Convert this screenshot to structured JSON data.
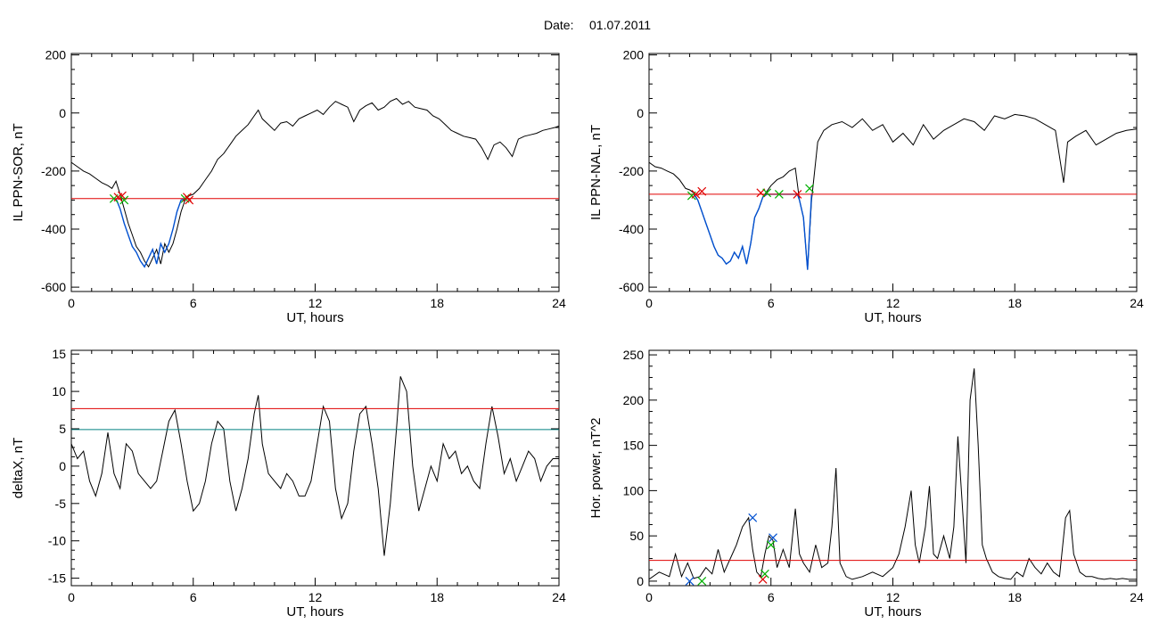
{
  "figure": {
    "title_label": "Date:",
    "title_date": "01.07.2011"
  },
  "chart_data": [
    {
      "type": "line",
      "ylabel": "IL PPN-SOR, nT",
      "xlabel": "UT, hours",
      "xlim": [
        0,
        24
      ],
      "ylim": [
        -615,
        205
      ],
      "xticks": [
        0,
        6,
        12,
        18,
        24
      ],
      "yticks": [
        200,
        0,
        -200,
        -400,
        -600
      ],
      "grid": false,
      "threshold_lines": [
        {
          "y": -295,
          "color": "#e00000"
        }
      ],
      "series": [
        {
          "color": "#000000",
          "x": [
            0,
            0.3,
            0.6,
            0.9,
            1.2,
            1.5,
            1.8,
            2.0,
            2.2,
            2.4,
            2.6,
            2.8,
            3.0,
            3.2,
            3.4,
            3.6,
            3.8,
            4.0,
            4.2,
            4.4,
            4.6,
            4.8,
            5.0,
            5.2,
            5.4,
            5.6,
            5.8,
            6.0,
            6.3,
            6.6,
            6.9,
            7.2,
            7.5,
            7.8,
            8.1,
            8.4,
            8.7,
            9.0,
            9.2,
            9.4,
            9.7,
            10.0,
            10.3,
            10.6,
            10.9,
            11.2,
            11.5,
            11.8,
            12.1,
            12.4,
            12.7,
            13.0,
            13.3,
            13.6,
            13.9,
            14.2,
            14.5,
            14.8,
            15.1,
            15.4,
            15.7,
            16.0,
            16.3,
            16.6,
            16.9,
            17.2,
            17.5,
            17.8,
            18.1,
            18.4,
            18.7,
            19.0,
            19.3,
            19.6,
            19.9,
            20.2,
            20.5,
            20.8,
            21.1,
            21.4,
            21.7,
            22.0,
            22.3,
            22.6,
            22.9,
            23.2,
            23.5,
            23.8,
            24.0
          ],
          "y": [
            -170,
            -185,
            -200,
            -210,
            -225,
            -240,
            -250,
            -260,
            -235,
            -280,
            -330,
            -380,
            -420,
            -460,
            -480,
            -510,
            -530,
            -500,
            -470,
            -520,
            -450,
            -480,
            -450,
            -400,
            -340,
            -300,
            -285,
            -280,
            -260,
            -230,
            -200,
            -160,
            -140,
            -110,
            -80,
            -60,
            -40,
            -10,
            10,
            -20,
            -40,
            -60,
            -35,
            -30,
            -45,
            -20,
            -10,
            0,
            10,
            -5,
            20,
            40,
            30,
            20,
            -30,
            10,
            25,
            35,
            10,
            20,
            40,
            50,
            30,
            40,
            20,
            15,
            10,
            -10,
            -20,
            -40,
            -60,
            -70,
            -80,
            -85,
            -90,
            -120,
            -160,
            -110,
            -100,
            -120,
            -150,
            -90,
            -80,
            -75,
            -70,
            -60,
            -55,
            -50,
            -45
          ]
        },
        {
          "color": "#0050d0",
          "x": [
            2.2,
            2.4,
            2.6,
            2.8,
            3.0,
            3.2,
            3.4,
            3.6,
            3.8,
            4.0,
            4.2,
            4.4,
            4.6,
            4.8,
            5.0,
            5.2,
            5.4,
            5.6,
            5.8
          ],
          "y": [
            -295,
            -330,
            -380,
            -420,
            -460,
            -480,
            -510,
            -530,
            -500,
            -470,
            -520,
            -450,
            -480,
            -450,
            -400,
            -340,
            -300,
            -295,
            -295
          ]
        }
      ],
      "markers": [
        {
          "x": 2.1,
          "y": -295,
          "color": "#00b000"
        },
        {
          "x": 2.3,
          "y": -290,
          "color": "#e00000"
        },
        {
          "x": 2.5,
          "y": -285,
          "color": "#e00000"
        },
        {
          "x": 2.6,
          "y": -300,
          "color": "#00b000"
        },
        {
          "x": 5.6,
          "y": -295,
          "color": "#00b000"
        },
        {
          "x": 5.7,
          "y": -290,
          "color": "#e00000"
        },
        {
          "x": 5.8,
          "y": -300,
          "color": "#e00000"
        }
      ]
    },
    {
      "type": "line",
      "ylabel": "IL PPN-NAL, nT",
      "xlabel": "UT, hours",
      "xlim": [
        0,
        24
      ],
      "ylim": [
        -615,
        205
      ],
      "xticks": [
        0,
        6,
        12,
        18,
        24
      ],
      "yticks": [
        200,
        0,
        -200,
        -400,
        -600
      ],
      "grid": false,
      "threshold_lines": [
        {
          "y": -280,
          "color": "#e00000"
        }
      ],
      "series": [
        {
          "color": "#000000",
          "x": [
            0,
            0.3,
            0.6,
            0.9,
            1.2,
            1.5,
            1.8,
            2.0,
            2.2,
            2.4,
            2.6,
            2.8,
            3.0,
            3.2,
            3.4,
            3.6,
            3.8,
            4.0,
            4.2,
            4.4,
            4.6,
            4.8,
            5.0,
            5.2,
            5.4,
            5.6,
            5.8,
            6.0,
            6.3,
            6.6,
            6.9,
            7.2,
            7.4,
            7.6,
            7.8,
            8.0,
            8.3,
            8.6,
            9.0,
            9.5,
            10.0,
            10.5,
            11.0,
            11.5,
            12.0,
            12.5,
            13.0,
            13.5,
            14.0,
            14.5,
            15.0,
            15.5,
            16.0,
            16.5,
            17.0,
            17.5,
            18.0,
            18.5,
            19.0,
            19.5,
            20.0,
            20.2,
            20.4,
            20.6,
            21.0,
            21.5,
            22.0,
            22.5,
            23.0,
            23.5,
            24.0
          ],
          "y": [
            -170,
            -185,
            -190,
            -200,
            -210,
            -230,
            -260,
            -265,
            -275,
            -300,
            -340,
            -380,
            -420,
            -460,
            -490,
            -500,
            -520,
            -510,
            -480,
            -500,
            -460,
            -520,
            -450,
            -360,
            -330,
            -290,
            -270,
            -250,
            -230,
            -220,
            -200,
            -190,
            -300,
            -360,
            -540,
            -300,
            -100,
            -60,
            -40,
            -30,
            -50,
            -20,
            -60,
            -40,
            -100,
            -70,
            -110,
            -40,
            -90,
            -60,
            -40,
            -20,
            -30,
            -60,
            -10,
            -20,
            -5,
            -10,
            -20,
            -40,
            -60,
            -150,
            -240,
            -100,
            -80,
            -60,
            -110,
            -90,
            -70,
            -60,
            -55
          ]
        },
        {
          "color": "#0050d0",
          "x": [
            2.2,
            2.4,
            2.6,
            2.8,
            3.0,
            3.2,
            3.4,
            3.6,
            3.8,
            4.0,
            4.2,
            4.4,
            4.6,
            4.8,
            5.0,
            5.2,
            5.4,
            5.6,
            5.8,
            6.0,
            7.3,
            7.4,
            7.6,
            7.8,
            8.0
          ],
          "y": [
            -280,
            -300,
            -340,
            -380,
            -420,
            -460,
            -490,
            -500,
            -520,
            -510,
            -480,
            -500,
            -460,
            -520,
            -450,
            -360,
            -330,
            -290,
            -280,
            -280,
            -280,
            -300,
            -360,
            -540,
            -280
          ]
        }
      ],
      "markers": [
        {
          "x": 2.1,
          "y": -285,
          "color": "#00b000"
        },
        {
          "x": 2.3,
          "y": -280,
          "color": "#e00000"
        },
        {
          "x": 2.6,
          "y": -270,
          "color": "#e00000"
        },
        {
          "x": 5.5,
          "y": -275,
          "color": "#e00000"
        },
        {
          "x": 5.8,
          "y": -275,
          "color": "#00b000"
        },
        {
          "x": 6.4,
          "y": -280,
          "color": "#00b000"
        },
        {
          "x": 7.3,
          "y": -280,
          "color": "#e00000"
        },
        {
          "x": 7.9,
          "y": -260,
          "color": "#00b000"
        }
      ]
    },
    {
      "type": "line",
      "ylabel": "deltaX, nT",
      "xlabel": "UT, hours",
      "xlim": [
        0,
        24
      ],
      "ylim": [
        -16,
        15.5
      ],
      "xticks": [
        0,
        6,
        12,
        18,
        24
      ],
      "yticks": [
        15,
        10,
        5,
        0,
        -5,
        -10,
        -15
      ],
      "grid": false,
      "threshold_lines": [
        {
          "y": 7.7,
          "color": "#e00000"
        },
        {
          "y": 4.9,
          "color": "#008080"
        }
      ],
      "series": [
        {
          "color": "#000000",
          "x": [
            0,
            0.3,
            0.6,
            0.9,
            1.2,
            1.5,
            1.8,
            2.1,
            2.4,
            2.7,
            3.0,
            3.3,
            3.6,
            3.9,
            4.2,
            4.5,
            4.8,
            5.1,
            5.4,
            5.7,
            6.0,
            6.3,
            6.6,
            6.9,
            7.2,
            7.5,
            7.8,
            8.1,
            8.4,
            8.7,
            9.0,
            9.2,
            9.4,
            9.7,
            10.0,
            10.3,
            10.6,
            10.9,
            11.2,
            11.5,
            11.8,
            12.1,
            12.4,
            12.7,
            13.0,
            13.3,
            13.6,
            13.9,
            14.2,
            14.5,
            14.8,
            15.1,
            15.4,
            15.7,
            16.0,
            16.2,
            16.5,
            16.8,
            17.1,
            17.4,
            17.7,
            18.0,
            18.3,
            18.6,
            18.9,
            19.2,
            19.5,
            19.8,
            20.1,
            20.4,
            20.7,
            21.0,
            21.3,
            21.6,
            21.9,
            22.2,
            22.5,
            22.8,
            23.1,
            23.4,
            23.7,
            24.0
          ],
          "y": [
            3,
            1,
            2,
            -2,
            -4,
            -1,
            4.5,
            -1,
            -3,
            3,
            2,
            -1,
            -2,
            -3,
            -2,
            2,
            6,
            7.5,
            3,
            -2,
            -6,
            -5,
            -2,
            3,
            6,
            5,
            -2,
            -6,
            -3,
            1,
            7,
            9.5,
            3,
            -1,
            -2,
            -3,
            -1,
            -2,
            -4,
            -4,
            -2,
            3,
            8,
            6,
            -3,
            -7,
            -5,
            2,
            7,
            8,
            3,
            -3,
            -12,
            -5,
            5,
            12,
            10,
            0,
            -6,
            -3,
            0,
            -2,
            3,
            1,
            2,
            -1,
            0,
            -2,
            -3,
            3,
            8,
            4,
            -1,
            1,
            -2,
            0,
            2,
            1,
            -2,
            0,
            1,
            1
          ]
        }
      ]
    },
    {
      "type": "line",
      "ylabel": "Hor. power, nT^2",
      "xlabel": "UT, hours",
      "xlim": [
        0,
        24
      ],
      "ylim": [
        -5,
        255
      ],
      "xticks": [
        0,
        6,
        12,
        18,
        24
      ],
      "yticks": [
        250,
        200,
        150,
        100,
        50,
        0
      ],
      "grid": false,
      "threshold_lines": [
        {
          "y": 23,
          "color": "#e00000"
        }
      ],
      "series": [
        {
          "color": "#000000",
          "x": [
            0,
            0.5,
            1.0,
            1.3,
            1.6,
            1.9,
            2.2,
            2.5,
            2.8,
            3.1,
            3.4,
            3.7,
            4.0,
            4.3,
            4.6,
            4.9,
            5.1,
            5.3,
            5.5,
            5.7,
            5.9,
            6.1,
            6.3,
            6.6,
            6.9,
            7.2,
            7.4,
            7.6,
            7.9,
            8.2,
            8.5,
            8.8,
            9.0,
            9.2,
            9.4,
            9.7,
            10.0,
            10.5,
            11.0,
            11.5,
            12.0,
            12.3,
            12.6,
            12.9,
            13.1,
            13.3,
            13.6,
            13.8,
            14.0,
            14.2,
            14.5,
            14.8,
            15.0,
            15.2,
            15.4,
            15.6,
            15.8,
            16.0,
            16.2,
            16.4,
            16.6,
            16.9,
            17.2,
            17.5,
            17.8,
            18.1,
            18.4,
            18.7,
            19.0,
            19.3,
            19.6,
            19.9,
            20.2,
            20.5,
            20.7,
            20.9,
            21.2,
            21.5,
            21.8,
            22.1,
            22.4,
            22.7,
            23.0,
            23.3,
            23.6,
            24.0
          ],
          "y": [
            2,
            10,
            5,
            30,
            5,
            20,
            3,
            5,
            15,
            8,
            35,
            10,
            25,
            40,
            60,
            70,
            35,
            10,
            5,
            30,
            50,
            45,
            15,
            35,
            15,
            80,
            30,
            20,
            10,
            40,
            15,
            20,
            60,
            125,
            20,
            5,
            2,
            5,
            10,
            5,
            15,
            30,
            60,
            100,
            40,
            20,
            60,
            105,
            30,
            25,
            50,
            25,
            60,
            160,
            90,
            20,
            200,
            235,
            150,
            40,
            25,
            10,
            5,
            3,
            2,
            10,
            5,
            25,
            15,
            8,
            20,
            10,
            5,
            70,
            78,
            30,
            10,
            5,
            5,
            3,
            2,
            3,
            2,
            3,
            2,
            2
          ]
        }
      ],
      "markers": [
        {
          "x": 2.0,
          "y": 0,
          "color": "#0050d0"
        },
        {
          "x": 2.6,
          "y": 0,
          "color": "#00b000"
        },
        {
          "x": 5.1,
          "y": 70,
          "color": "#0050d0"
        },
        {
          "x": 5.6,
          "y": 2,
          "color": "#e00000"
        },
        {
          "x": 5.7,
          "y": 8,
          "color": "#00b000"
        },
        {
          "x": 6.0,
          "y": 40,
          "color": "#00b000"
        },
        {
          "x": 6.1,
          "y": 48,
          "color": "#0050d0"
        }
      ]
    }
  ]
}
